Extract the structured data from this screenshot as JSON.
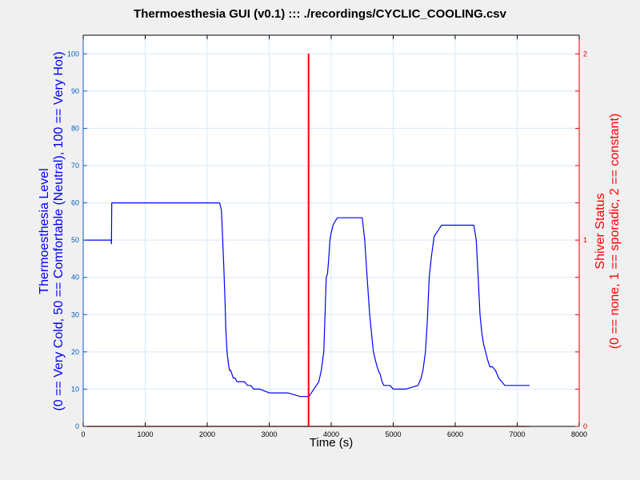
{
  "window": {
    "title": "Thermoesthesia GUI (v0.1) ::: ./recordings/CYCLIC_COOLING.csv"
  },
  "chart_data": {
    "type": "line",
    "title": "Thermoesthesia GUI (v0.1) ::: ./recordings/CYCLIC_COOLING.csv",
    "xlabel": "Time (s)",
    "ylabel_left": [
      "Thermoesthesia Level",
      "(0 == Very Cold, 50 == Comfortable (Neutral), 100 == Very Hot)"
    ],
    "ylabel_right": [
      "Shiver Status",
      "(0 == none, 1 == sporadic, 2 == constant)"
    ],
    "xlim": [
      0,
      8000
    ],
    "ylim_left": [
      0,
      105
    ],
    "ylim_right": [
      0,
      2.1
    ],
    "x_ticks": [
      0,
      1000,
      2000,
      3000,
      4000,
      5000,
      6000,
      7000,
      8000
    ],
    "y_left_ticks": [
      0,
      10,
      20,
      30,
      40,
      50,
      60,
      70,
      80,
      90,
      100
    ],
    "y_right_ticks": [
      0,
      1,
      2
    ],
    "grid": true,
    "colors": {
      "thermo": "#0000ff",
      "shiver": "#ff0000",
      "left_axis": "#0060c0",
      "right_axis": "#e00000",
      "grid": "#d8e8f8"
    },
    "series": [
      {
        "axis": "left",
        "x": [
          0,
          450,
          455,
          460,
          470,
          2200,
          2230,
          2250,
          2270,
          2290,
          2300,
          2320,
          2340,
          2360,
          2380,
          2400,
          2420,
          2450,
          2480,
          2520,
          2560,
          2600,
          2650,
          2700,
          2750,
          2850,
          3000,
          3300,
          3500,
          3640,
          3680,
          3720,
          3760,
          3800,
          3840,
          3880,
          3900,
          3920,
          3940,
          3960,
          3980,
          4000,
          4030,
          4060,
          4100,
          4150,
          4500,
          4540,
          4580,
          4620,
          4650,
          4680,
          4710,
          4740,
          4760,
          4790,
          4820,
          4850,
          4900,
          4950,
          5000,
          5050,
          5100,
          5200,
          5400,
          5450,
          5480,
          5520,
          5550,
          5580,
          5620,
          5660,
          5700,
          5740,
          5780,
          5820,
          5860,
          5900,
          5950,
          6300,
          6340,
          6370,
          6400,
          6430,
          6460,
          6490,
          6520,
          6560,
          6600,
          6650,
          6700,
          6750,
          6800,
          6900,
          6950,
          7000,
          7050,
          7200
        ],
        "y": [
          50,
          50,
          49,
          60,
          60,
          60,
          58,
          50,
          42,
          32,
          26,
          20,
          17,
          15,
          15,
          14,
          13,
          13,
          12,
          12,
          12,
          12,
          11,
          11,
          10,
          10,
          9,
          9,
          8,
          8,
          9,
          10,
          11,
          12,
          15,
          20,
          30,
          40,
          41,
          45,
          50,
          52,
          54,
          55,
          56,
          56,
          56,
          50,
          40,
          30,
          25,
          20,
          18,
          16,
          15,
          14,
          12,
          11,
          11,
          11,
          10,
          10,
          10,
          10,
          11,
          13,
          15,
          20,
          28,
          40,
          46,
          51,
          52,
          53,
          54,
          54,
          54,
          54,
          54,
          54,
          50,
          40,
          30,
          25,
          22,
          20,
          18,
          16,
          16,
          15,
          13,
          12,
          11,
          11,
          11,
          11,
          11,
          11
        ]
      },
      {
        "axis": "right",
        "x": [
          0,
          3630,
          3630,
          3640,
          3640,
          7200
        ],
        "y": [
          0,
          0,
          2,
          2,
          0,
          0
        ]
      }
    ]
  }
}
